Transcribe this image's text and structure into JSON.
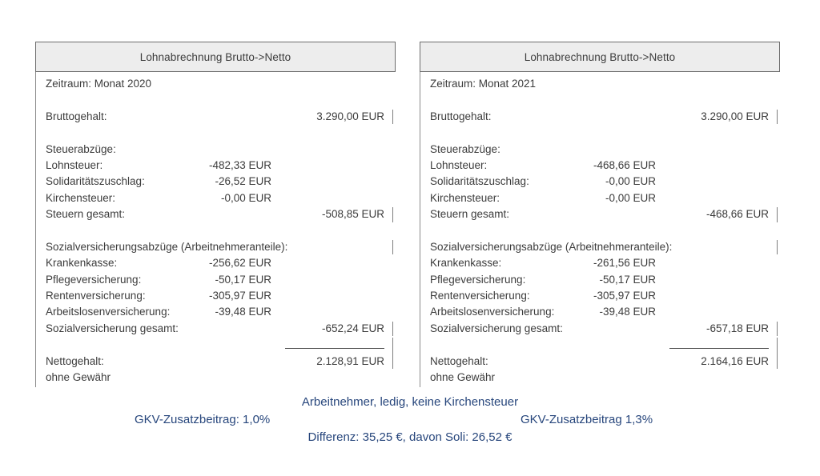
{
  "colors": {
    "note_blue": "#27467c",
    "header_bg": "#ededed",
    "header_border": "#6d6d6d",
    "body_text": "#3c3c3c"
  },
  "tables": [
    {
      "title": "Lohnabrechnung Brutto->Netto",
      "period": "Zeitraum: Monat 2020",
      "rows": {
        "bruttogehalt": {
          "label": "Bruttogehalt:",
          "total": "3.290,00 EUR"
        },
        "steuerabzuege": {
          "label": "Steuerabzüge:"
        },
        "lohnsteuer": {
          "label": "Lohnsteuer:",
          "amount": "-482,33 EUR"
        },
        "solidaritaetszuschlag": {
          "label": "Solidaritätszuschlag:",
          "amount": "-26,52 EUR"
        },
        "kirchensteuer": {
          "label": "Kirchensteuer:",
          "amount": "-0,00 EUR"
        },
        "steuern_gesamt": {
          "label": "Steuern gesamt:",
          "total": "-508,85 EUR"
        },
        "sozial_header": {
          "label": "Sozialversicherungsabzüge (Arbeitnehmeranteile):"
        },
        "krankenkasse": {
          "label": "Krankenkasse:",
          "amount": "-256,62 EUR"
        },
        "pflegeversicherung": {
          "label": "Pflegeversicherung:",
          "amount": "-50,17 EUR"
        },
        "rentenversicherung": {
          "label": "Rentenversicherung:",
          "amount": "-305,97 EUR"
        },
        "arbeitslosenversicherung": {
          "label": "Arbeitslosenversicherung:",
          "amount": "-39,48 EUR"
        },
        "sozial_gesamt": {
          "label": "Sozialversicherung gesamt:",
          "total": "-652,24 EUR"
        },
        "nettogehalt": {
          "label": "Nettogehalt:",
          "total": "2.128,91 EUR"
        },
        "disclaimer": {
          "label": "ohne Gewähr"
        }
      }
    },
    {
      "title": "Lohnabrechnung Brutto->Netto",
      "period": "Zeitraum: Monat 2021",
      "rows": {
        "bruttogehalt": {
          "label": "Bruttogehalt:",
          "total": "3.290,00 EUR"
        },
        "steuerabzuege": {
          "label": "Steuerabzüge:"
        },
        "lohnsteuer": {
          "label": "Lohnsteuer:",
          "amount": "-468,66 EUR"
        },
        "solidaritaetszuschlag": {
          "label": "Solidaritätszuschlag:",
          "amount": "-0,00 EUR"
        },
        "kirchensteuer": {
          "label": "Kirchensteuer:",
          "amount": "-0,00 EUR"
        },
        "steuern_gesamt": {
          "label": "Steuern gesamt:",
          "total": "-468,66 EUR"
        },
        "sozial_header": {
          "label": "Sozialversicherungsabzüge (Arbeitnehmeranteile):"
        },
        "krankenkasse": {
          "label": "Krankenkasse:",
          "amount": "-261,56 EUR"
        },
        "pflegeversicherung": {
          "label": "Pflegeversicherung:",
          "amount": "-50,17 EUR"
        },
        "rentenversicherung": {
          "label": "Rentenversicherung:",
          "amount": "-305,97 EUR"
        },
        "arbeitslosenversicherung": {
          "label": "Arbeitslosenversicherung:",
          "amount": "-39,48 EUR"
        },
        "sozial_gesamt": {
          "label": "Sozialversicherung gesamt:",
          "total": "-657,18 EUR"
        },
        "nettogehalt": {
          "label": "Nettogehalt:",
          "total": "2.164,16 EUR"
        },
        "disclaimer": {
          "label": "ohne Gewähr"
        }
      }
    }
  ],
  "footer": {
    "line1": "Arbeitnehmer, ledig, keine Kirchensteuer",
    "gkv_left": "GKV-Zusatzbeitrag: 1,0%",
    "gkv_right": "GKV-Zusatzbeitrag 1,3%",
    "line3": "Differenz: 35,25 €, davon Soli: 26,52 €"
  }
}
